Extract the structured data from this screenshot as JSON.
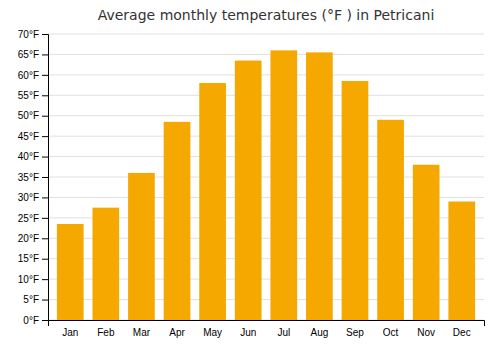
{
  "chart_data": {
    "type": "bar",
    "title": "Average monthly temperatures (°F ) in Petricani",
    "categories": [
      "Jan",
      "Feb",
      "Mar",
      "Apr",
      "May",
      "Jun",
      "Jul",
      "Aug",
      "Sep",
      "Oct",
      "Nov",
      "Dec"
    ],
    "values": [
      23.5,
      27.5,
      36.0,
      48.5,
      58.0,
      63.5,
      66.0,
      65.5,
      58.5,
      49.0,
      38.0,
      29.0
    ],
    "color": "#F5A800",
    "ylim": [
      0,
      70
    ],
    "yticks": [
      {
        "value": 0,
        "label": "0°F"
      },
      {
        "value": 5,
        "label": "5°F"
      },
      {
        "value": 10,
        "label": "10°F"
      },
      {
        "value": 15,
        "label": "15°F"
      },
      {
        "value": 20,
        "label": "20°F"
      },
      {
        "value": 25,
        "label": "25°F"
      },
      {
        "value": 30,
        "label": "30°F"
      },
      {
        "value": 35,
        "label": "35°F"
      },
      {
        "value": 40,
        "label": "40°F"
      },
      {
        "value": 45,
        "label": "45°F"
      },
      {
        "value": 50,
        "label": "50°F"
      },
      {
        "value": 55,
        "label": "55°F"
      },
      {
        "value": 60,
        "label": "60°F"
      },
      {
        "value": 65,
        "label": "65°F"
      },
      {
        "value": 70,
        "label": "70°F"
      }
    ],
    "grid": true
  }
}
